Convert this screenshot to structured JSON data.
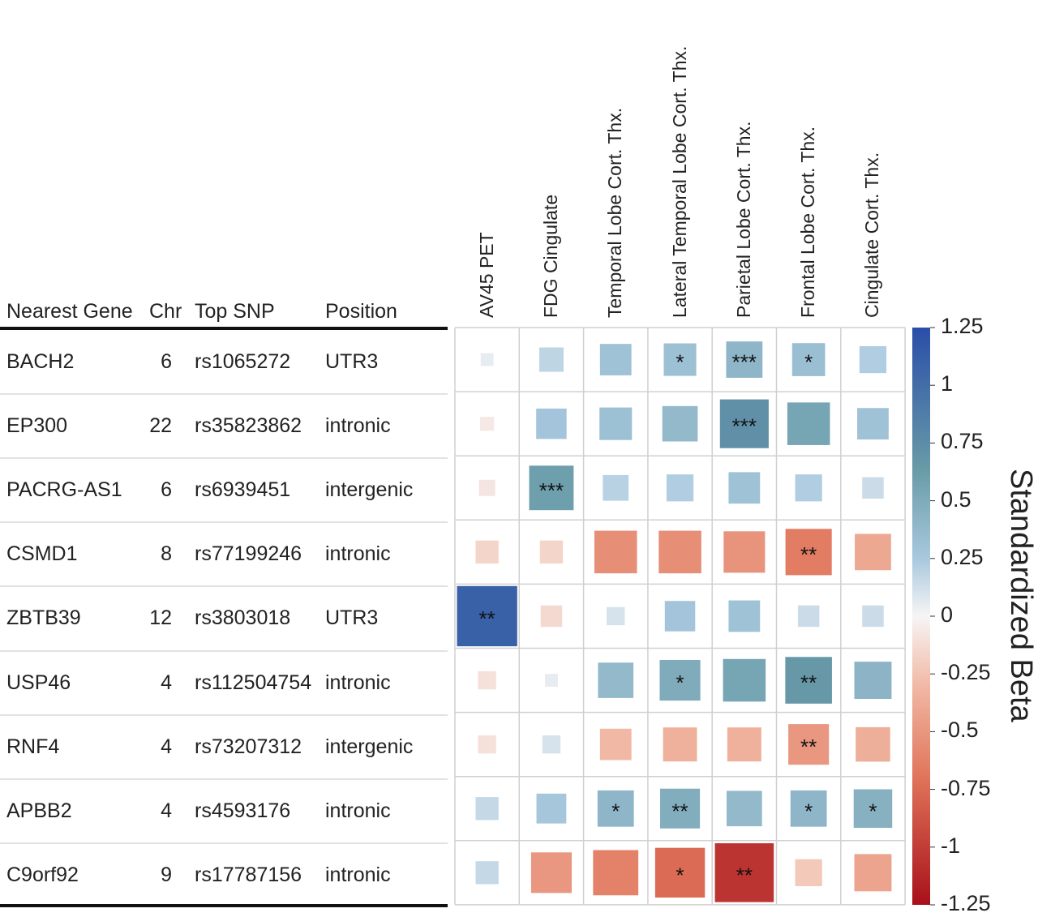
{
  "table": {
    "headers": [
      "Nearest Gene",
      "Chr",
      "Top SNP",
      "Position"
    ],
    "rows": [
      {
        "gene": "BACH2",
        "chr": "6",
        "snp": "rs1065272",
        "position": "UTR3"
      },
      {
        "gene": "EP300",
        "chr": "22",
        "snp": "rs35823862",
        "position": "intronic"
      },
      {
        "gene": "PACRG-AS1",
        "chr": "6",
        "snp": "rs6939451",
        "position": "intergenic"
      },
      {
        "gene": "CSMD1",
        "chr": "8",
        "snp": "rs77199246",
        "position": "intronic"
      },
      {
        "gene": "ZBTB39",
        "chr": "12",
        "snp": "rs3803018",
        "position": "UTR3"
      },
      {
        "gene": "USP46",
        "chr": "4",
        "snp": "rs112504754",
        "position": "intronic"
      },
      {
        "gene": "RNF4",
        "chr": "4",
        "snp": "rs73207312",
        "position": "intergenic"
      },
      {
        "gene": "APBB2",
        "chr": "4",
        "snp": "rs4593176",
        "position": "intronic"
      },
      {
        "gene": "C9orf92",
        "chr": "9",
        "snp": "rs17787156",
        "position": "intronic"
      }
    ]
  },
  "chart_data": {
    "type": "heatmap",
    "columns": [
      "AV45 PET",
      "FDG Cingulate",
      "Temporal Lobe Cort. Thx.",
      "Lateral Temporal Lobe Cort. Thx.",
      "Parietal Lobe Cort. Thx.",
      "Frontal Lobe Cort. Thx.",
      "Cingulate Cort. Thx."
    ],
    "rows": [
      "BACH2",
      "EP300",
      "PACRG-AS1",
      "CSMD1",
      "ZBTB39",
      "USP46",
      "RNF4",
      "APBB2",
      "C9orf92"
    ],
    "values": [
      [
        0.05,
        0.18,
        0.3,
        0.32,
        0.4,
        0.33,
        0.22
      ],
      [
        -0.06,
        0.28,
        0.32,
        0.38,
        0.72,
        0.55,
        0.3
      ],
      [
        -0.08,
        0.6,
        0.2,
        0.22,
        0.3,
        0.22,
        0.14
      ],
      [
        -0.16,
        -0.16,
        -0.55,
        -0.55,
        -0.52,
        -0.65,
        -0.4
      ],
      [
        1.1,
        -0.14,
        0.1,
        0.28,
        0.3,
        0.14,
        0.14
      ],
      [
        -0.1,
        0.05,
        0.38,
        0.5,
        0.55,
        0.66,
        0.42
      ],
      [
        -0.1,
        0.1,
        -0.3,
        -0.35,
        -0.35,
        -0.5,
        -0.36
      ],
      [
        0.16,
        0.27,
        0.4,
        0.48,
        0.38,
        0.4,
        0.45
      ],
      [
        0.16,
        -0.5,
        -0.62,
        -0.75,
        -1.05,
        -0.22,
        -0.42
      ]
    ],
    "significance": [
      [
        "",
        "",
        "",
        "*",
        "***",
        "*",
        ""
      ],
      [
        "",
        "",
        "",
        "",
        "***",
        "",
        ""
      ],
      [
        "",
        "***",
        "",
        "",
        "",
        "",
        ""
      ],
      [
        "",
        "",
        "",
        "",
        "",
        "**",
        ""
      ],
      [
        "**",
        "",
        "",
        "",
        "",
        "",
        ""
      ],
      [
        "",
        "",
        "",
        "*",
        "",
        "**",
        ""
      ],
      [
        "",
        "",
        "",
        "",
        "",
        "**",
        ""
      ],
      [
        "",
        "",
        "*",
        "**",
        "",
        "*",
        "*"
      ],
      [
        "",
        "",
        "",
        "*",
        "**",
        "",
        ""
      ]
    ],
    "colorbar": {
      "title": "Standardized Beta",
      "min": -1.25,
      "max": 1.25,
      "ticks": [
        "1.25",
        "1",
        "0.75",
        "0.5",
        "0.25",
        "0",
        "-0.25",
        "-0.5",
        "-0.75",
        "-1",
        "-1.25"
      ],
      "colors": {
        "high": "#2a4ea8",
        "upper_mid": "#6a9ca8",
        "light_blue": "#a8c8de",
        "zero": "#f7f5f5",
        "light_red": "#f1b9a5",
        "lower_mid": "#e0745a",
        "low": "#a8101a"
      }
    }
  }
}
